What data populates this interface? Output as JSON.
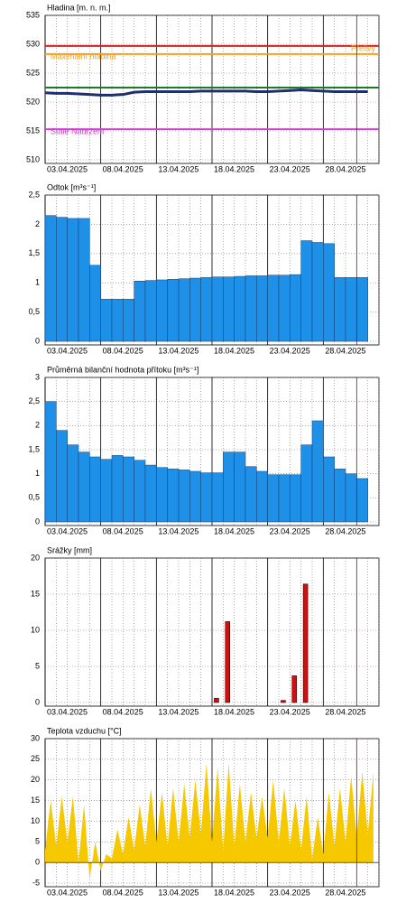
{
  "chart_data": [
    {
      "type": "line",
      "title": "Hladina [m. n. m.]",
      "color": "#1f2f6b",
      "x": [
        "03.04.2025",
        "04.04.2025",
        "05.04.2025",
        "06.04.2025",
        "07.04.2025",
        "08.04.2025",
        "09.04.2025",
        "10.04.2025",
        "11.04.2025",
        "12.04.2025",
        "13.04.2025",
        "14.04.2025",
        "15.04.2025",
        "16.04.2025",
        "17.04.2025",
        "18.04.2025",
        "19.04.2025",
        "20.04.2025",
        "21.04.2025",
        "22.04.2025",
        "23.04.2025",
        "24.04.2025",
        "25.04.2025",
        "26.04.2025",
        "27.04.2025",
        "28.04.2025",
        "29.04.2025",
        "30.04.2025",
        "01.05.2025",
        "02.05.2025"
      ],
      "values": [
        521.6,
        521.5,
        521.5,
        521.4,
        521.3,
        521.2,
        521.2,
        521.3,
        521.7,
        521.8,
        521.8,
        521.8,
        521.8,
        521.8,
        521.9,
        521.9,
        521.9,
        521.9,
        521.9,
        521.8,
        521.8,
        521.9,
        522.0,
        522.1,
        522.0,
        521.9,
        521.8,
        521.8,
        521.8,
        521.8
      ],
      "reference_lines": [
        {
          "name": "Přelivy",
          "value": 529.7,
          "color": "#d62020",
          "label_color": "#f4a020",
          "label_side": "right"
        },
        {
          "name": "Maximální hladina",
          "value": 528.3,
          "color": "#f4a020",
          "label_color": "#f4a020",
          "label_side": "left"
        },
        {
          "value": 522.5,
          "color": "#1a7a2a"
        },
        {
          "name": "Stálé Nadržení",
          "value": 515.3,
          "color": "#d040d0",
          "label_color": "#d040d0",
          "label_side": "left"
        }
      ],
      "xlim": [
        "03.04.2025",
        "03.05.2025"
      ],
      "xticks": [
        "03.04.2025",
        "08.04.2025",
        "13.04.2025",
        "18.04.2025",
        "23.04.2025",
        "28.04.2025"
      ],
      "ylim": [
        510,
        535
      ],
      "yticks": [
        510,
        515,
        520,
        525,
        530,
        535
      ],
      "grid": true,
      "marker_date": "01.05.2025",
      "marker_color": "#c00000"
    },
    {
      "type": "step",
      "title": "Odtok [m³s⁻¹]",
      "color": "#1e90e8",
      "x": [
        "03.04.2025",
        "04.04.2025",
        "05.04.2025",
        "06.04.2025",
        "07.04.2025",
        "08.04.2025",
        "09.04.2025",
        "10.04.2025",
        "11.04.2025",
        "12.04.2025",
        "13.04.2025",
        "14.04.2025",
        "15.04.2025",
        "16.04.2025",
        "17.04.2025",
        "18.04.2025",
        "19.04.2025",
        "20.04.2025",
        "21.04.2025",
        "22.04.2025",
        "23.04.2025",
        "24.04.2025",
        "25.04.2025",
        "26.04.2025",
        "27.04.2025",
        "28.04.2025",
        "29.04.2025",
        "30.04.2025",
        "01.05.2025"
      ],
      "values": [
        2.15,
        2.12,
        2.1,
        2.1,
        1.3,
        0.72,
        0.72,
        0.72,
        1.03,
        1.04,
        1.05,
        1.06,
        1.07,
        1.08,
        1.09,
        1.1,
        1.1,
        1.11,
        1.12,
        1.12,
        1.13,
        1.13,
        1.14,
        1.72,
        1.69,
        1.67,
        1.09,
        1.09,
        1.09
      ],
      "xlim": [
        "03.04.2025",
        "03.05.2025"
      ],
      "xticks": [
        "03.04.2025",
        "08.04.2025",
        "13.04.2025",
        "18.04.2025",
        "23.04.2025",
        "28.04.2025"
      ],
      "ylim": [
        0,
        2.5
      ],
      "yticks": [
        0,
        {
          "value": 0.5,
          "label": "0,5"
        },
        1,
        {
          "value": 1.5,
          "label": "1,5"
        },
        2,
        {
          "value": 2.5,
          "label": "2,5"
        }
      ],
      "grid": true,
      "marker_date": "01.05.2025",
      "marker_color": "#c00000"
    },
    {
      "type": "step",
      "title": "Průměrná bilanční hodnota přítoku   [m³s⁻¹]",
      "color": "#1e90e8",
      "x": [
        "03.04.2025",
        "04.04.2025",
        "05.04.2025",
        "06.04.2025",
        "07.04.2025",
        "08.04.2025",
        "09.04.2025",
        "10.04.2025",
        "11.04.2025",
        "12.04.2025",
        "13.04.2025",
        "14.04.2025",
        "15.04.2025",
        "16.04.2025",
        "17.04.2025",
        "18.04.2025",
        "19.04.2025",
        "20.04.2025",
        "21.04.2025",
        "22.04.2025",
        "23.04.2025",
        "24.04.2025",
        "25.04.2025",
        "26.04.2025",
        "27.04.2025",
        "28.04.2025",
        "29.04.2025",
        "30.04.2025",
        "01.05.2025"
      ],
      "values": [
        2.5,
        1.9,
        1.6,
        1.45,
        1.35,
        1.3,
        1.38,
        1.35,
        1.28,
        1.18,
        1.13,
        1.1,
        1.08,
        1.05,
        1.02,
        1.02,
        1.45,
        1.45,
        1.15,
        1.05,
        0.98,
        0.98,
        0.98,
        1.6,
        2.1,
        1.35,
        1.1,
        1.0,
        0.9
      ],
      "xlim": [
        "03.04.2025",
        "03.05.2025"
      ],
      "xticks": [
        "03.04.2025",
        "08.04.2025",
        "13.04.2025",
        "18.04.2025",
        "23.04.2025",
        "28.04.2025"
      ],
      "ylim": [
        0,
        3
      ],
      "yticks": [
        0,
        {
          "value": 0.5,
          "label": "0,5"
        },
        1,
        {
          "value": 1.5,
          "label": "1,5"
        },
        2,
        {
          "value": 2.5,
          "label": "2,5"
        },
        3
      ],
      "grid": true,
      "marker_date": "01.05.2025",
      "marker_color": "#c00000"
    },
    {
      "type": "bar",
      "title": "Srážky [mm]",
      "color": "#d01010",
      "x": [
        "18.04.2025",
        "19.04.2025",
        "24.04.2025",
        "25.04.2025",
        "26.04.2025"
      ],
      "values": [
        0.6,
        11.2,
        0.3,
        3.7,
        16.4
      ],
      "xlim": [
        "03.04.2025",
        "03.05.2025"
      ],
      "xticks": [
        "03.04.2025",
        "08.04.2025",
        "13.04.2025",
        "18.04.2025",
        "23.04.2025",
        "28.04.2025"
      ],
      "ylim": [
        0,
        20
      ],
      "yticks": [
        0,
        5,
        10,
        15,
        20
      ],
      "grid": true,
      "marker_date": "01.05.2025",
      "marker_color": "#c00000"
    },
    {
      "type": "area",
      "title": "Teplota vzduchu [°C]",
      "color": "#f5c800",
      "x": [
        "03.04.2025",
        "04.04.2025",
        "05.04.2025",
        "06.04.2025",
        "07.04.2025",
        "08.04.2025",
        "09.04.2025",
        "10.04.2025",
        "11.04.2025",
        "12.04.2025",
        "13.04.2025",
        "14.04.2025",
        "15.04.2025",
        "16.04.2025",
        "17.04.2025",
        "18.04.2025",
        "19.04.2025",
        "20.04.2025",
        "21.04.2025",
        "22.04.2025",
        "23.04.2025",
        "24.04.2025",
        "25.04.2025",
        "26.04.2025",
        "27.04.2025",
        "28.04.2025",
        "29.04.2025",
        "30.04.2025",
        "01.05.2025",
        "02.05.2025"
      ],
      "min": [
        3,
        4,
        5,
        0,
        -4,
        -2,
        1,
        2,
        3,
        4,
        5,
        4,
        5,
        6,
        7,
        5,
        3,
        4,
        5,
        6,
        6,
        5,
        4,
        3,
        1,
        2,
        4,
        5,
        6,
        7
      ],
      "max": [
        15,
        16,
        16,
        14,
        5,
        2,
        8,
        11,
        14,
        18,
        17,
        18,
        19,
        20,
        24,
        23,
        24,
        19,
        17,
        16,
        20,
        18,
        15,
        16,
        11,
        17,
        18,
        21,
        22,
        22
      ],
      "xlim": [
        "03.04.2025",
        "03.05.2025"
      ],
      "xticks": [
        "03.04.2025",
        "08.04.2025",
        "13.04.2025",
        "18.04.2025",
        "23.04.2025",
        "28.04.2025"
      ],
      "ylim": [
        -5,
        30
      ],
      "yticks": [
        -5,
        0,
        5,
        10,
        15,
        20,
        25,
        30
      ],
      "grid": true,
      "marker_date": "01.05.2025",
      "marker_color": "#c00000"
    }
  ]
}
